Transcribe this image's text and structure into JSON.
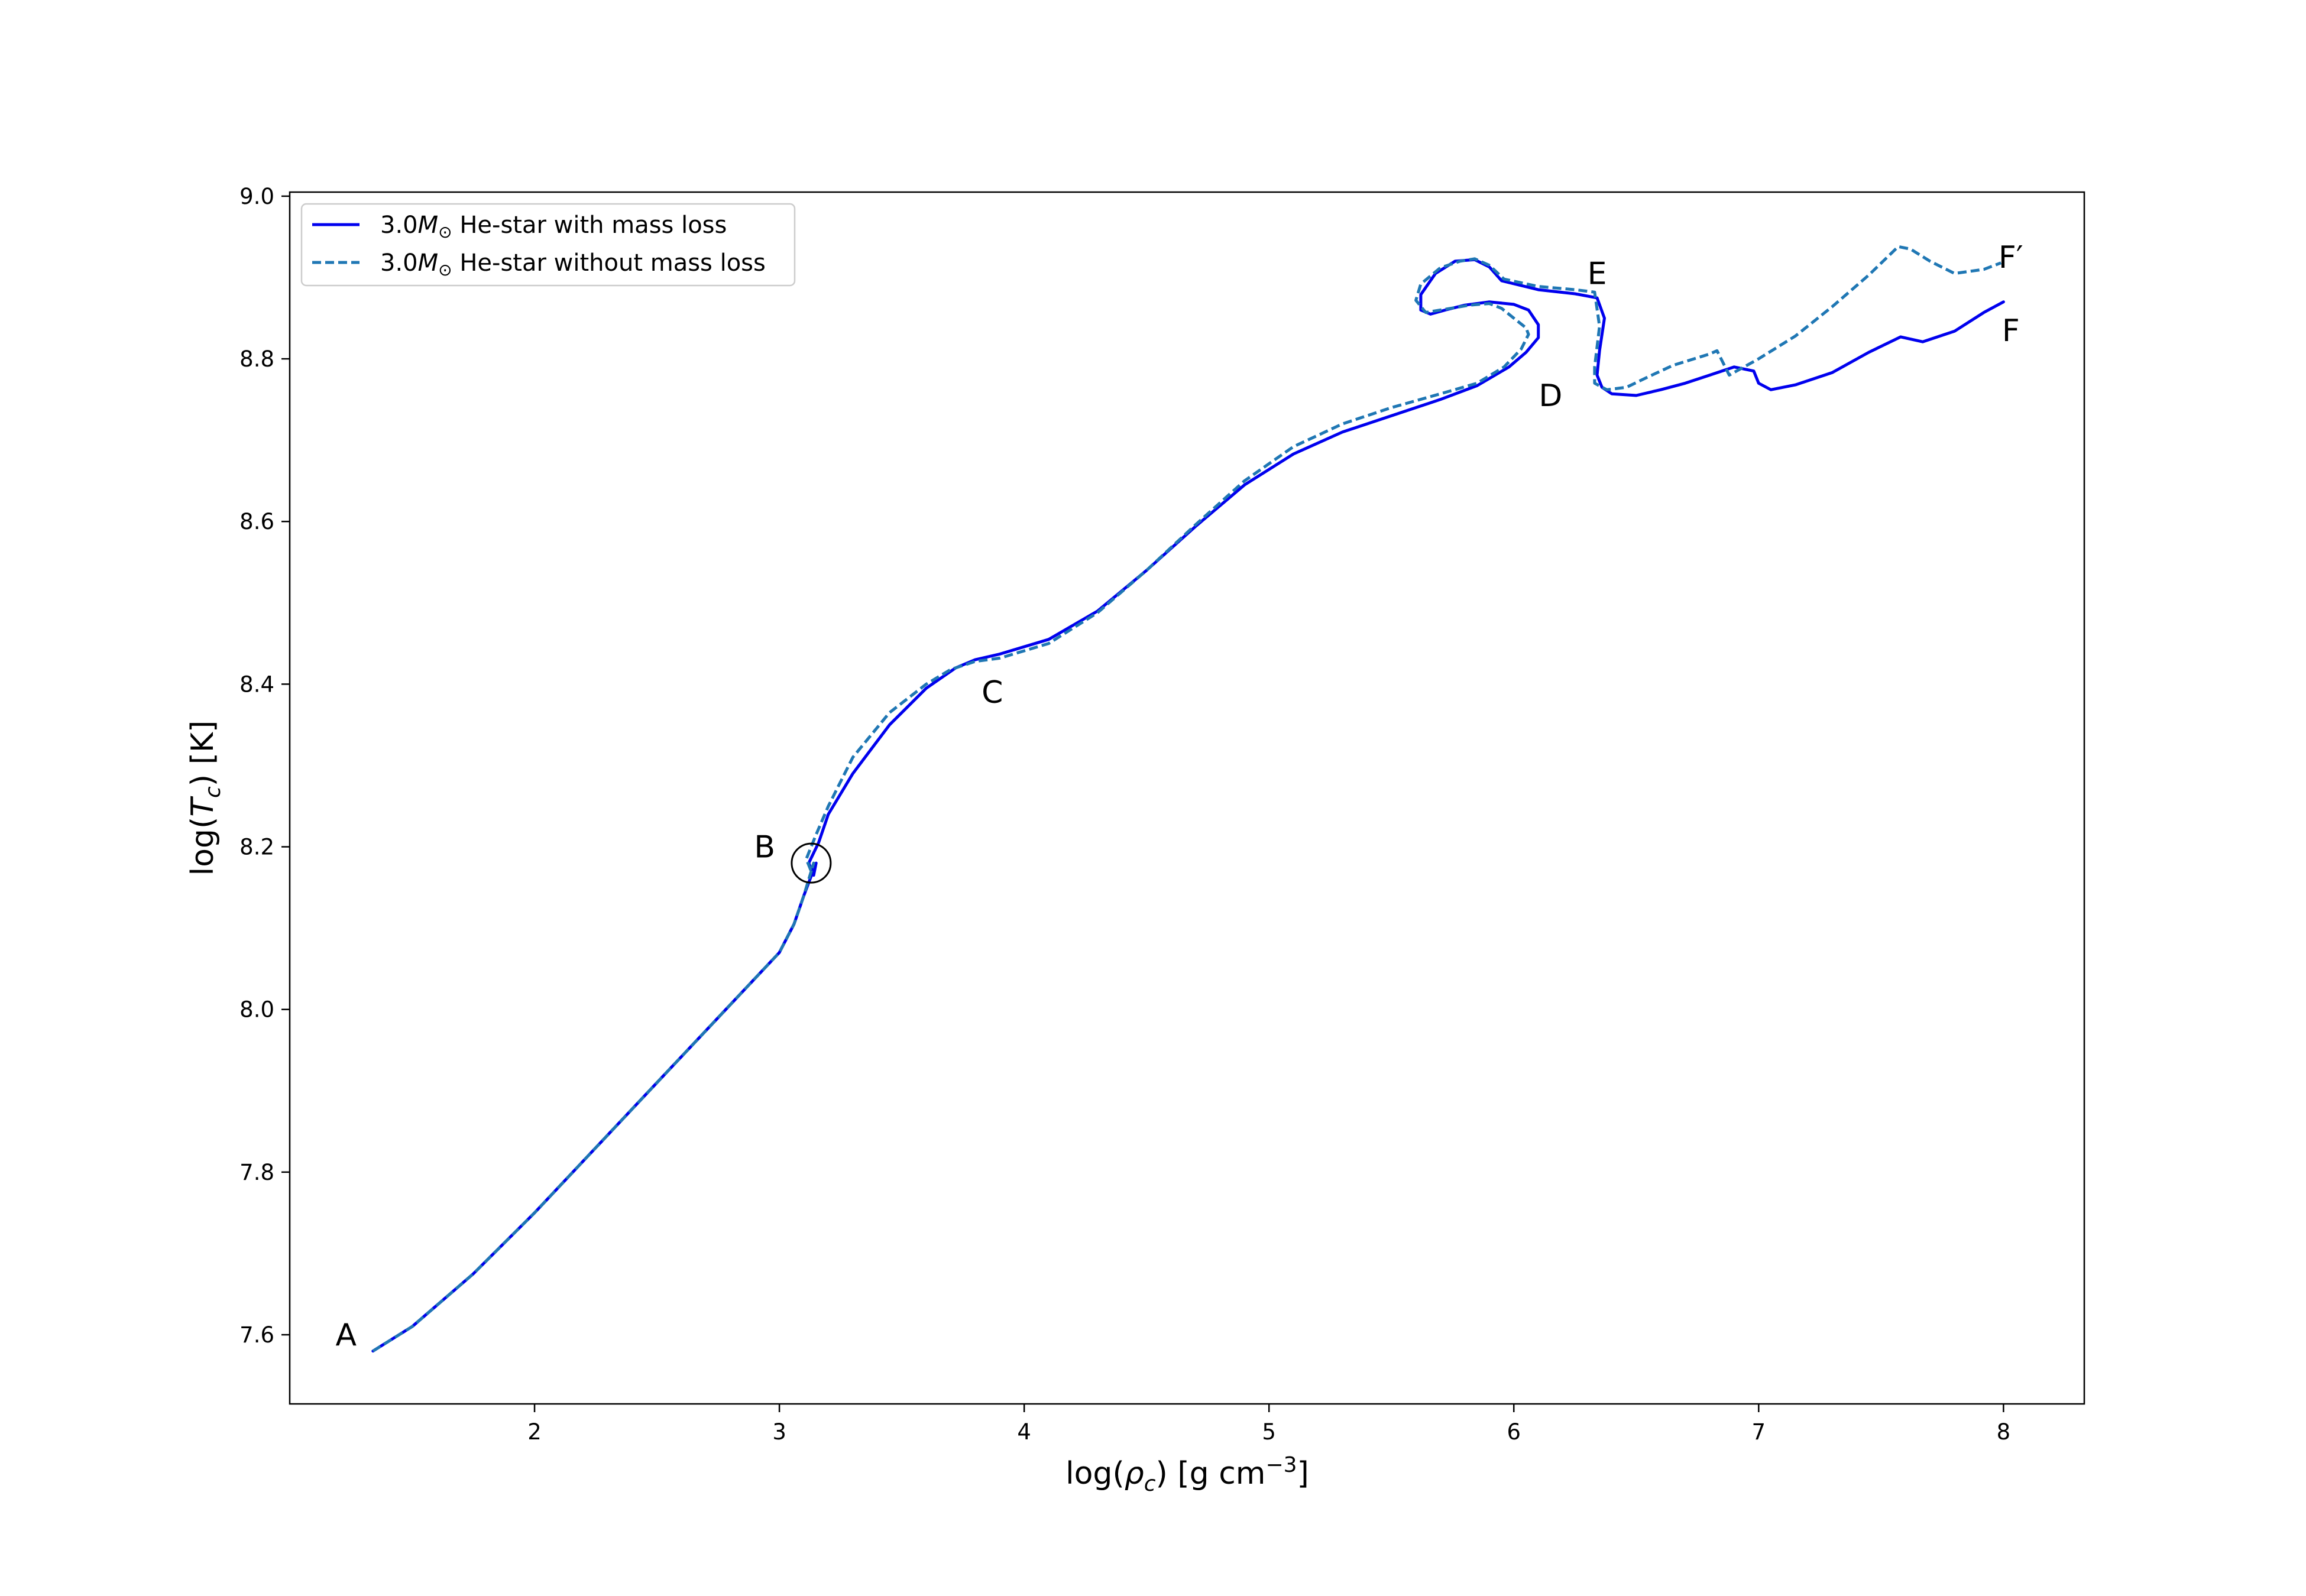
{
  "chart_data": {
    "type": "line",
    "xlabel": "log(ρ_c) [g cm^-3]",
    "ylabel": "log(T_c) [K]",
    "xlim": [
      1.0,
      8.33
    ],
    "ylim": [
      7.515,
      9.005
    ],
    "xticks": [
      2,
      3,
      4,
      5,
      6,
      7,
      8
    ],
    "yticks": [
      7.6,
      7.8,
      8.0,
      8.2,
      8.4,
      8.6,
      8.8,
      9.0
    ],
    "grid": false,
    "legend_position": "upper-left",
    "series": [
      {
        "name": "3.0M⊙ He-star with mass loss",
        "style": "solid",
        "color": "#0000ee",
        "x": [
          1.34,
          1.5,
          1.75,
          2.0,
          2.25,
          2.5,
          2.75,
          3.0,
          3.06,
          3.1,
          3.15,
          3.14,
          3.12,
          3.16,
          3.2,
          3.3,
          3.45,
          3.6,
          3.72,
          3.8,
          3.9,
          4.1,
          4.3,
          4.5,
          4.7,
          4.9,
          5.1,
          5.3,
          5.5,
          5.7,
          5.85,
          5.98,
          6.05,
          6.1,
          6.1,
          6.06,
          6.0,
          5.9,
          5.8,
          5.72,
          5.66,
          5.62,
          5.62,
          5.68,
          5.76,
          5.84,
          5.9,
          5.95,
          6.1,
          6.25,
          6.34,
          6.37,
          6.35,
          6.34,
          6.36,
          6.4,
          6.5,
          6.6,
          6.7,
          6.8,
          6.9,
          6.98,
          7.0,
          7.05,
          7.15,
          7.3,
          7.45,
          7.58,
          7.67,
          7.8,
          7.92,
          8.0
        ],
        "y": [
          7.58,
          7.61,
          7.675,
          7.75,
          7.83,
          7.91,
          7.99,
          8.07,
          8.105,
          8.14,
          8.18,
          8.165,
          8.18,
          8.205,
          8.24,
          8.29,
          8.35,
          8.395,
          8.42,
          8.43,
          8.437,
          8.455,
          8.49,
          8.54,
          8.594,
          8.645,
          8.683,
          8.71,
          8.73,
          8.75,
          8.767,
          8.79,
          8.808,
          8.826,
          8.842,
          8.86,
          8.867,
          8.87,
          8.866,
          8.86,
          8.855,
          8.86,
          8.879,
          8.905,
          8.92,
          8.922,
          8.913,
          8.896,
          8.885,
          8.88,
          8.875,
          8.85,
          8.81,
          8.78,
          8.765,
          8.757,
          8.755,
          8.762,
          8.77,
          8.78,
          8.79,
          8.785,
          8.77,
          8.762,
          8.768,
          8.783,
          8.808,
          8.827,
          8.821,
          8.834,
          8.857,
          8.87
        ]
      },
      {
        "name": "3.0M⊙ He-star without mass loss",
        "style": "dashed",
        "color": "#1f77b4",
        "x": [
          1.34,
          1.5,
          1.75,
          2.0,
          2.25,
          2.5,
          2.75,
          3.0,
          3.06,
          3.1,
          3.14,
          3.13,
          3.11,
          3.15,
          3.2,
          3.3,
          3.45,
          3.6,
          3.7,
          3.8,
          3.9,
          4.1,
          4.3,
          4.5,
          4.7,
          4.9,
          5.1,
          5.3,
          5.5,
          5.7,
          5.85,
          5.96,
          6.03,
          6.06,
          6.05,
          6.0,
          5.95,
          5.9,
          5.82,
          5.72,
          5.64,
          5.6,
          5.62,
          5.7,
          5.78,
          5.84,
          5.9,
          5.96,
          6.1,
          6.25,
          6.33,
          6.35,
          6.33,
          6.33,
          6.38,
          6.46,
          6.55,
          6.65,
          6.8,
          6.83,
          6.88,
          7.0,
          7.15,
          7.3,
          7.45,
          7.57,
          7.62,
          7.7,
          7.8,
          7.92,
          7.99
        ],
        "y": [
          7.58,
          7.61,
          7.675,
          7.75,
          7.83,
          7.91,
          7.99,
          8.07,
          8.105,
          8.14,
          8.18,
          8.17,
          8.185,
          8.215,
          8.25,
          8.31,
          8.365,
          8.4,
          8.418,
          8.428,
          8.432,
          8.45,
          8.488,
          8.54,
          8.596,
          8.65,
          8.692,
          8.72,
          8.74,
          8.757,
          8.77,
          8.79,
          8.812,
          8.83,
          8.838,
          8.85,
          8.862,
          8.868,
          8.866,
          8.861,
          8.857,
          8.872,
          8.892,
          8.912,
          8.92,
          8.923,
          8.915,
          8.898,
          8.889,
          8.885,
          8.882,
          8.84,
          8.79,
          8.77,
          8.762,
          8.765,
          8.778,
          8.792,
          8.806,
          8.81,
          8.78,
          8.8,
          8.828,
          8.864,
          8.903,
          8.938,
          8.935,
          8.92,
          8.905,
          8.91,
          8.918
        ]
      }
    ],
    "annotations": [
      {
        "text": "A",
        "x": 1.23,
        "y": 7.6
      },
      {
        "text": "B",
        "x": 2.94,
        "y": 8.2
      },
      {
        "text": "C",
        "x": 3.87,
        "y": 8.39
      },
      {
        "text": "D",
        "x": 6.15,
        "y": 8.755
      },
      {
        "text": "E",
        "x": 6.34,
        "y": 8.905
      },
      {
        "text": "F′",
        "x": 8.03,
        "y": 8.925
      },
      {
        "text": "F",
        "x": 8.03,
        "y": 8.835
      }
    ],
    "marker_circle": {
      "x": 3.13,
      "y": 8.18
    }
  }
}
